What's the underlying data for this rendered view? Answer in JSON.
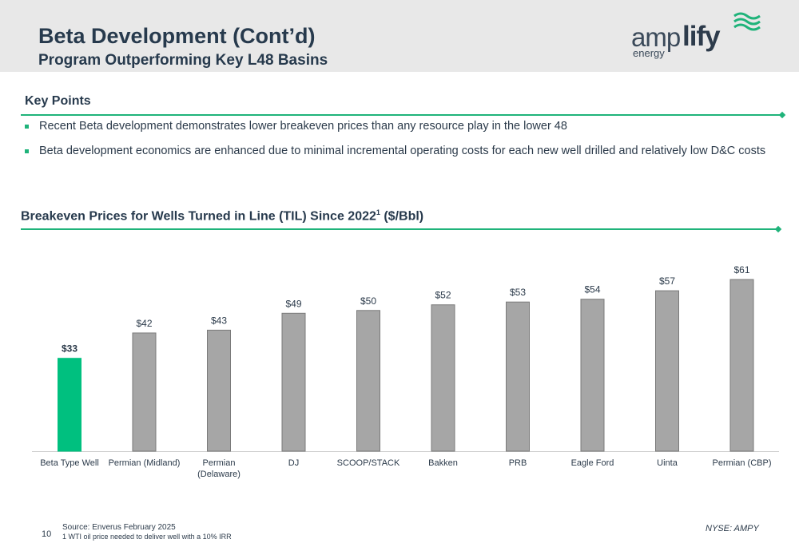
{
  "header": {
    "title": "Beta Development (Cont’d)",
    "subtitle": "Program Outperforming Key L48 Basins"
  },
  "logo": {
    "am": "amp",
    "lify": "lify",
    "energy": "energy"
  },
  "key_points": {
    "heading": "Key Points",
    "bullets": [
      "Recent Beta development demonstrates lower breakeven prices than any resource play in the lower 48",
      "Beta development economics are enhanced due to minimal incremental operating costs for each new well drilled and relatively low D&C costs"
    ]
  },
  "chart_section": {
    "heading": "Breakeven Prices for Wells Turned in Line (TIL) Since 2022",
    "superscript": "1",
    "heading_suffix": " ($/Bbl)"
  },
  "chart_data": {
    "type": "bar",
    "title": "Breakeven Prices for Wells Turned in Line (TIL) Since 2022 ($/Bbl)",
    "categories": [
      "Beta Type Well",
      "Permian (Midland)",
      "Permian (Delaware)",
      "DJ",
      "SCOOP/STACK",
      "Bakken",
      "PRB",
      "Eagle Ford",
      "Uinta",
      "Permian (CBP)"
    ],
    "category_lines": [
      [
        "Beta Type Well"
      ],
      [
        "Permian (Midland)"
      ],
      [
        "Permian",
        "(Delaware)"
      ],
      [
        "DJ"
      ],
      [
        "SCOOP/STACK"
      ],
      [
        "Bakken"
      ],
      [
        "PRB"
      ],
      [
        "Eagle Ford"
      ],
      [
        "Uinta"
      ],
      [
        "Permian (CBP)"
      ]
    ],
    "values": [
      33,
      42,
      43,
      49,
      50,
      52,
      53,
      54,
      57,
      61
    ],
    "data_labels": [
      "$33",
      "$42",
      "$43",
      "$49",
      "$50",
      "$52",
      "$53",
      "$54",
      "$57",
      "$61"
    ],
    "highlight_index": 0,
    "colors": {
      "highlight": "#00c07f",
      "default": "#a6a6a6",
      "edge": "#7a7a7a"
    },
    "ylim": [
      0,
      61
    ],
    "grid": false
  },
  "footer": {
    "source": "Source: Enverus February 2025",
    "note": "1      WTI oil price needed to deliver well with a 10% IRR",
    "page_number": "10",
    "ticker": "NYSE: AMPY"
  }
}
